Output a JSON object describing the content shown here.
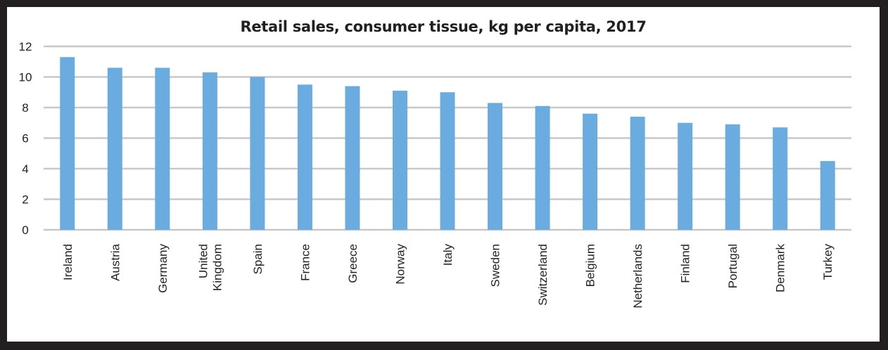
{
  "chart_data": {
    "type": "bar",
    "title": "Retail sales, consumer tissue, kg per capita, 2017",
    "categories": [
      "Ireland",
      "Austria",
      "Germany",
      "United Kingdom",
      "Spain",
      "France",
      "Greece",
      "Norway",
      "Italy",
      "Sweden",
      "Switzerland",
      "Belgium",
      "Netherlands",
      "Finland",
      "Portugal",
      "Denmark",
      "Turkey"
    ],
    "category_lines": [
      [
        "Ireland"
      ],
      [
        "Austria"
      ],
      [
        "Germany"
      ],
      [
        "United",
        "Kingdom"
      ],
      [
        "Spain"
      ],
      [
        "France"
      ],
      [
        "Greece"
      ],
      [
        "Norway"
      ],
      [
        "Italy"
      ],
      [
        "Sweden"
      ],
      [
        "Switzerland"
      ],
      [
        "Belgium"
      ],
      [
        "Netherlands"
      ],
      [
        "Finland"
      ],
      [
        "Portugal"
      ],
      [
        "Denmark"
      ],
      [
        "Turkey"
      ]
    ],
    "values": [
      11.3,
      10.6,
      10.6,
      10.3,
      10.0,
      9.5,
      9.4,
      9.1,
      9.0,
      8.3,
      8.1,
      7.6,
      7.4,
      7.0,
      6.9,
      6.7,
      4.5
    ],
    "yticks": [
      0,
      2,
      4,
      6,
      8,
      10,
      12
    ],
    "ylim": [
      0,
      12
    ],
    "grid": true,
    "legend": "none",
    "bar_color": "#6aace0",
    "grid_color": "#c8c8c8"
  }
}
